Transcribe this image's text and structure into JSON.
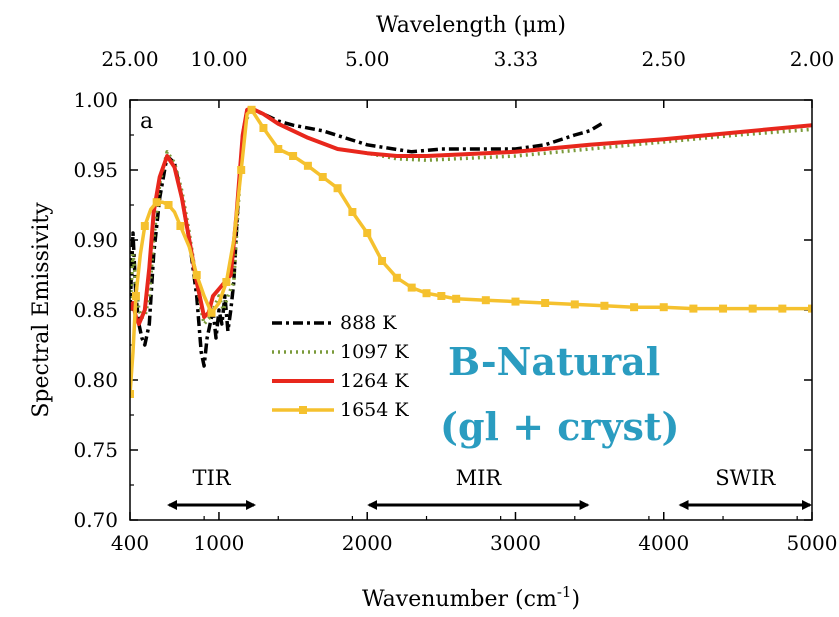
{
  "chart_data": {
    "type": "line",
    "panel_label": "a",
    "xlabel_base": "Wavenumber (cm",
    "xlabel_sup": "-1",
    "xlabel_close": ")",
    "ylabel": "Spectral Emissivity",
    "top_xlabel": "Wavelength (μm)",
    "xlim": [
      400,
      5000
    ],
    "ylim": [
      0.7,
      1.0
    ],
    "x_ticks": [
      400,
      1000,
      2000,
      3000,
      4000,
      5000
    ],
    "x_tick_labels": [
      "400",
      "1000",
      "2000",
      "3000",
      "4000",
      "5000"
    ],
    "y_ticks": [
      0.7,
      0.75,
      0.8,
      0.85,
      0.9,
      0.95,
      1.0
    ],
    "y_tick_labels": [
      "0.70",
      "0.75",
      "0.80",
      "0.85",
      "0.90",
      "0.95",
      "1.00"
    ],
    "top_ticks": [
      {
        "wavenumber": 400,
        "label": "25.00"
      },
      {
        "wavenumber": 1000,
        "label": "10.00"
      },
      {
        "wavenumber": 2000,
        "label": "5.00"
      },
      {
        "wavenumber": 3003,
        "label": "3.33"
      },
      {
        "wavenumber": 4000,
        "label": "2.50"
      },
      {
        "wavenumber": 5000,
        "label": "2.00"
      }
    ],
    "sample_label_line1": "B-Natural",
    "sample_label_line2": "(gl + cryst)",
    "sample_label_color": "#2a9cc0",
    "regions": [
      {
        "label": "TIR",
        "x_start": 650,
        "x_end": 1250
      },
      {
        "label": "MIR",
        "x_start": 2000,
        "x_end": 3500
      },
      {
        "label": "SWIR",
        "x_start": 4100,
        "x_end": 5000
      }
    ],
    "series": [
      {
        "name": "888 K",
        "color": "#000000",
        "dash": "10,4,3,4",
        "width": 3.5,
        "marker": "none",
        "x": [
          400,
          420,
          440,
          460,
          480,
          500,
          530,
          560,
          600,
          650,
          700,
          750,
          800,
          850,
          880,
          900,
          920,
          940,
          960,
          980,
          1000,
          1020,
          1040,
          1060,
          1080,
          1100,
          1130,
          1160,
          1190,
          1220,
          1260,
          1300,
          1400,
          1500,
          1700,
          2000,
          2300,
          2500,
          2800,
          3000,
          3200,
          3400,
          3500,
          3580
        ],
        "y": [
          0.85,
          0.905,
          0.86,
          0.84,
          0.83,
          0.825,
          0.84,
          0.89,
          0.93,
          0.96,
          0.955,
          0.93,
          0.9,
          0.86,
          0.82,
          0.81,
          0.83,
          0.84,
          0.85,
          0.83,
          0.85,
          0.84,
          0.86,
          0.835,
          0.85,
          0.87,
          0.93,
          0.975,
          0.993,
          0.994,
          0.992,
          0.99,
          0.985,
          0.982,
          0.978,
          0.968,
          0.963,
          0.965,
          0.965,
          0.965,
          0.968,
          0.975,
          0.978,
          0.983
        ]
      },
      {
        "name": "1097 K",
        "color": "#7a9a3a",
        "dash": "2,4",
        "width": 3.5,
        "marker": "none",
        "x": [
          400,
          420,
          440,
          460,
          480,
          500,
          530,
          560,
          600,
          650,
          700,
          750,
          800,
          850,
          880,
          900,
          940,
          980,
          1000,
          1030,
          1060,
          1100,
          1150,
          1180,
          1220,
          1300,
          1400,
          1600,
          1800,
          2000,
          2200,
          2400,
          2600,
          3000,
          3500,
          4000,
          4500,
          5000
        ],
        "y": [
          0.85,
          0.89,
          0.87,
          0.85,
          0.845,
          0.845,
          0.86,
          0.9,
          0.94,
          0.963,
          0.955,
          0.935,
          0.905,
          0.87,
          0.85,
          0.84,
          0.845,
          0.855,
          0.86,
          0.85,
          0.86,
          0.87,
          0.96,
          0.985,
          0.993,
          0.99,
          0.983,
          0.973,
          0.965,
          0.962,
          0.958,
          0.957,
          0.958,
          0.96,
          0.965,
          0.97,
          0.975,
          0.979
        ]
      },
      {
        "name": "1264 K",
        "color": "#e8271c",
        "dash": "",
        "width": 4,
        "marker": "none",
        "x": [
          400,
          420,
          440,
          460,
          480,
          500,
          530,
          560,
          600,
          650,
          700,
          750,
          800,
          850,
          880,
          900,
          930,
          960,
          1000,
          1040,
          1080,
          1120,
          1160,
          1190,
          1220,
          1300,
          1400,
          1600,
          1800,
          2000,
          2200,
          2400,
          2600,
          3000,
          3500,
          4000,
          4500,
          5000
        ],
        "y": [
          0.85,
          0.855,
          0.845,
          0.84,
          0.845,
          0.85,
          0.88,
          0.92,
          0.945,
          0.96,
          0.952,
          0.93,
          0.9,
          0.87,
          0.855,
          0.845,
          0.848,
          0.86,
          0.865,
          0.87,
          0.875,
          0.92,
          0.975,
          0.993,
          0.994,
          0.99,
          0.983,
          0.973,
          0.965,
          0.962,
          0.96,
          0.96,
          0.961,
          0.963,
          0.968,
          0.972,
          0.977,
          0.982
        ]
      },
      {
        "name": "1654 K",
        "color": "#f5c12e",
        "dash": "",
        "width": 3.5,
        "marker": "square",
        "x": [
          400,
          420,
          440,
          470,
          500,
          540,
          580,
          620,
          660,
          700,
          740,
          800,
          850,
          900,
          950,
          1000,
          1050,
          1100,
          1150,
          1190,
          1220,
          1300,
          1400,
          1500,
          1600,
          1700,
          1800,
          1900,
          2000,
          2100,
          2200,
          2300,
          2400,
          2500,
          2600,
          2800,
          3000,
          3200,
          3400,
          3600,
          3800,
          4000,
          4200,
          4400,
          4600,
          4800,
          5000
        ],
        "y": [
          0.79,
          0.82,
          0.86,
          0.89,
          0.91,
          0.922,
          0.927,
          0.927,
          0.925,
          0.92,
          0.91,
          0.895,
          0.875,
          0.86,
          0.848,
          0.855,
          0.87,
          0.9,
          0.95,
          0.99,
          0.993,
          0.98,
          0.965,
          0.96,
          0.953,
          0.945,
          0.937,
          0.92,
          0.905,
          0.885,
          0.873,
          0.866,
          0.862,
          0.86,
          0.858,
          0.857,
          0.856,
          0.855,
          0.854,
          0.853,
          0.852,
          0.852,
          0.851,
          0.851,
          0.851,
          0.851,
          0.851
        ]
      }
    ]
  }
}
